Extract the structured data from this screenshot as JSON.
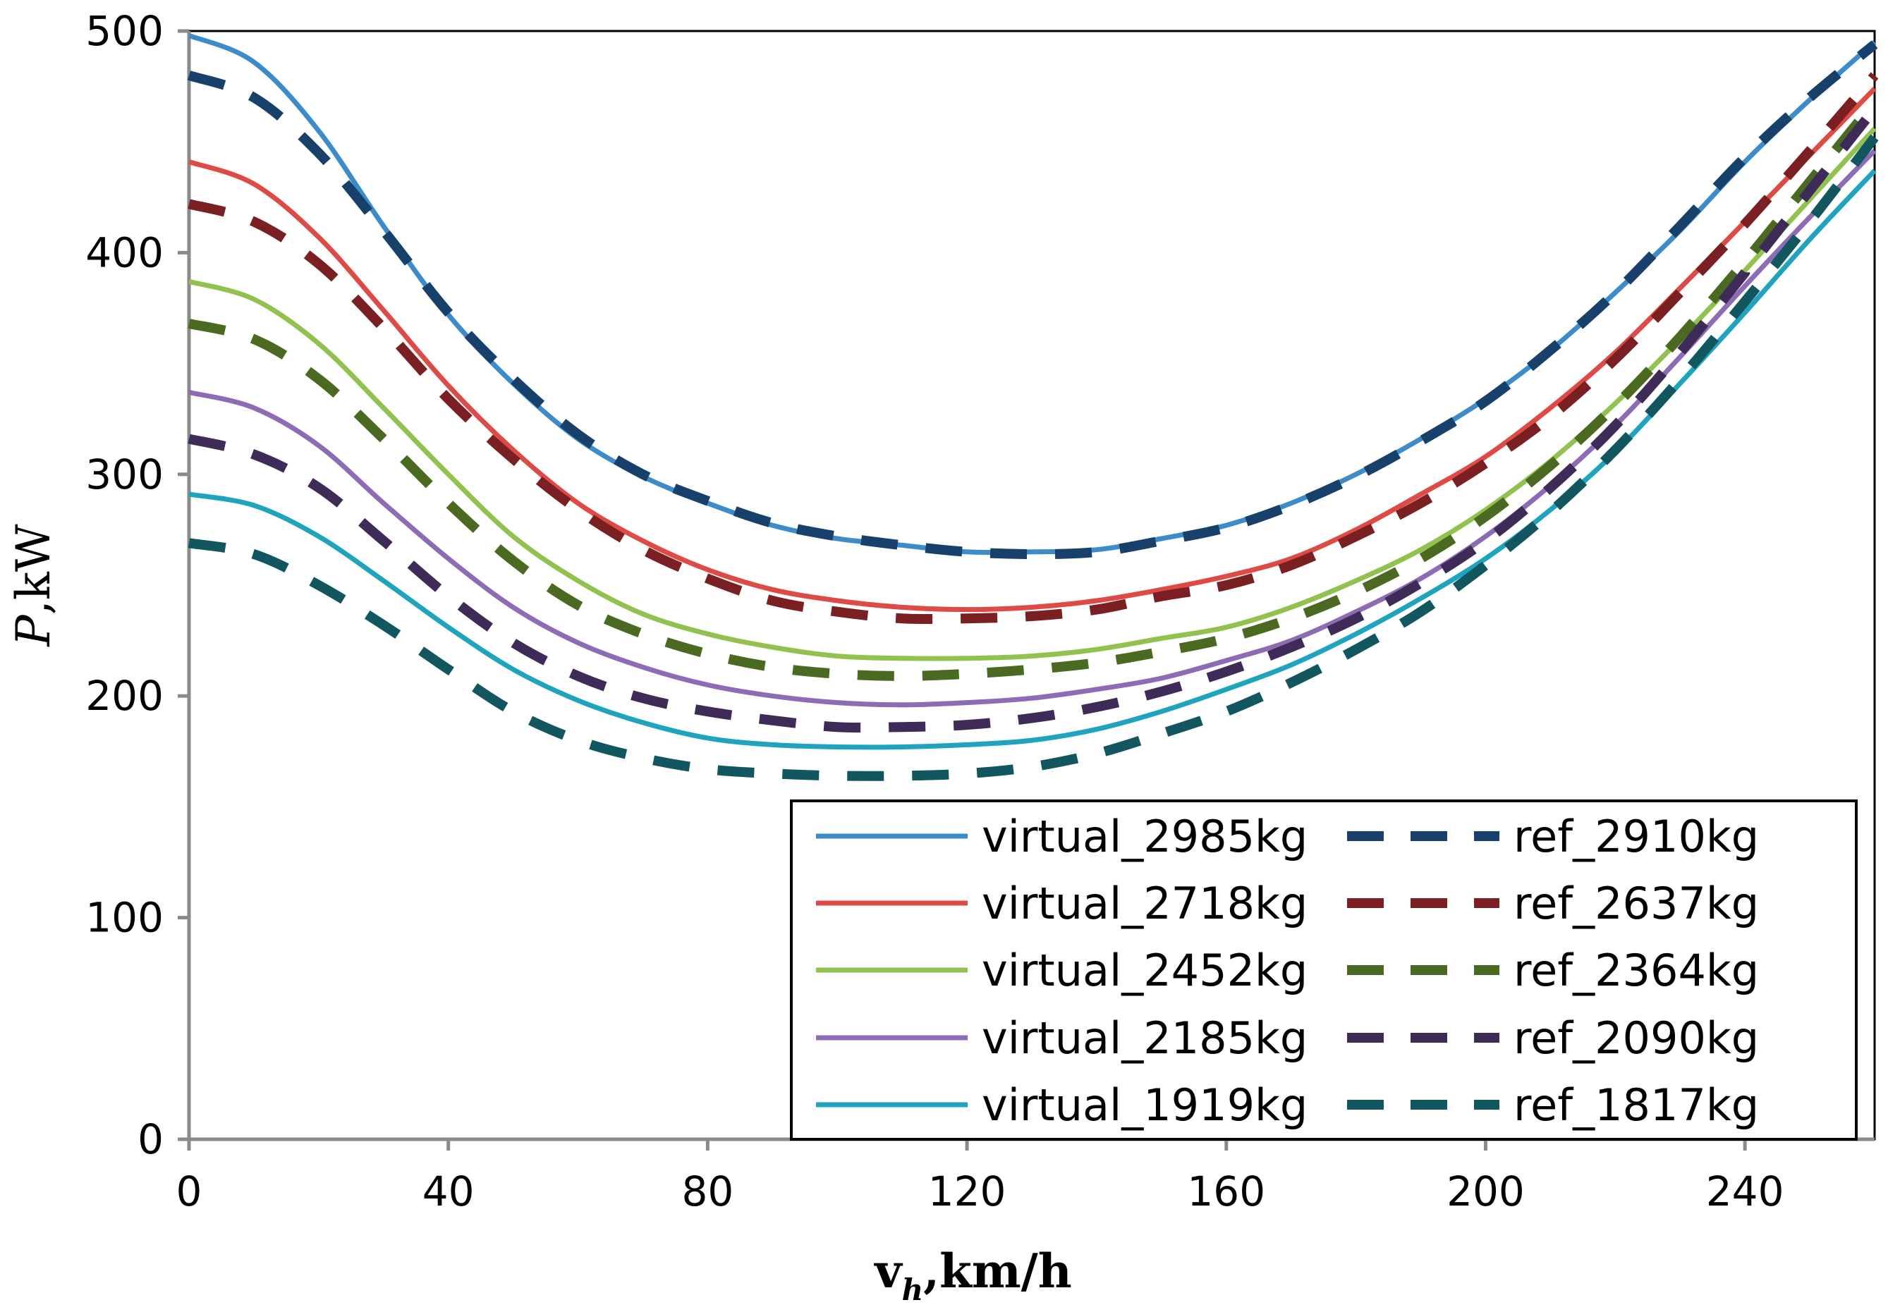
{
  "chart_data": {
    "type": "line",
    "title": "",
    "xlabel": {
      "main": "v",
      "sub": "h",
      "unit": ",km/h"
    },
    "ylabel": {
      "main": "P",
      "unit": ",kW"
    },
    "xlim": [
      0,
      260
    ],
    "ylim": [
      0,
      500
    ],
    "xticks": [
      0,
      40,
      80,
      120,
      160,
      200,
      240
    ],
    "yticks": [
      0,
      100,
      200,
      300,
      400,
      500
    ],
    "grid": false,
    "legend_position": "bottom-right",
    "x": [
      0,
      10,
      20,
      30,
      40,
      50,
      60,
      70,
      80,
      90,
      100,
      110,
      120,
      130,
      140,
      150,
      160,
      170,
      180,
      190,
      200,
      210,
      220,
      230,
      240,
      250,
      260
    ],
    "series": [
      {
        "name": "virtual_2985kg",
        "style": "solid",
        "color": "#3d8cc9",
        "values": [
          498,
          486,
          455,
          412,
          372,
          341,
          316,
          299,
          287,
          277,
          271,
          268,
          265,
          265,
          266,
          271,
          277,
          287,
          300,
          316,
          334,
          356,
          382,
          410,
          441,
          469,
          495
        ]
      },
      {
        "name": "ref_2910kg",
        "style": "dashed",
        "color": "#17406a",
        "values": [
          480,
          470,
          445,
          410,
          373,
          343,
          318,
          300,
          288,
          278,
          272,
          268,
          265,
          264,
          265,
          270,
          276,
          286,
          299,
          315,
          333,
          356,
          382,
          412,
          443,
          470,
          494
        ]
      },
      {
        "name": "virtual_2718kg",
        "style": "solid",
        "color": "#de4a45",
        "values": [
          441,
          431,
          407,
          374,
          340,
          311,
          287,
          270,
          257,
          248,
          243,
          240,
          239,
          240,
          243,
          248,
          254,
          262,
          275,
          291,
          308,
          330,
          355,
          384,
          414,
          444,
          474
        ]
      },
      {
        "name": "ref_2637kg",
        "style": "dashed",
        "color": "#7a2022",
        "values": [
          422,
          414,
          395,
          366,
          334,
          307,
          284,
          266,
          253,
          243,
          238,
          235,
          235,
          236,
          239,
          245,
          250,
          259,
          272,
          287,
          305,
          326,
          352,
          382,
          413,
          446,
          480
        ]
      },
      {
        "name": "virtual_2452kg",
        "style": "solid",
        "color": "#91c250",
        "values": [
          387,
          379,
          359,
          330,
          300,
          272,
          252,
          237,
          228,
          222,
          218,
          217,
          217,
          218,
          221,
          226,
          231,
          240,
          252,
          266,
          284,
          306,
          332,
          361,
          392,
          424,
          456
        ]
      },
      {
        "name": "ref_2364kg",
        "style": "dashed",
        "color": "#4a6a22",
        "values": [
          368,
          361,
          343,
          316,
          287,
          261,
          241,
          228,
          219,
          213,
          210,
          209,
          210,
          212,
          215,
          220,
          226,
          235,
          247,
          262,
          281,
          304,
          331,
          362,
          396,
          432,
          468
        ]
      },
      {
        "name": "virtual_2185kg",
        "style": "solid",
        "color": "#8e6bb5",
        "values": [
          337,
          330,
          313,
          287,
          262,
          240,
          224,
          213,
          205,
          200,
          197,
          196,
          197,
          199,
          203,
          208,
          216,
          225,
          238,
          253,
          272,
          295,
          322,
          353,
          385,
          416,
          446
        ]
      },
      {
        "name": "ref_2090kg",
        "style": "dashed",
        "color": "#3e2b58",
        "values": [
          316,
          309,
          294,
          270,
          245,
          224,
          209,
          199,
          193,
          189,
          186,
          186,
          187,
          190,
          195,
          202,
          211,
          222,
          235,
          251,
          270,
          294,
          322,
          355,
          391,
          428,
          465
        ]
      },
      {
        "name": "virtual_1919kg",
        "style": "solid",
        "color": "#1fa4be",
        "values": [
          291,
          286,
          272,
          252,
          231,
          212,
          198,
          188,
          181,
          178,
          177,
          177,
          178,
          180,
          185,
          193,
          203,
          214,
          228,
          244,
          262,
          284,
          310,
          341,
          373,
          406,
          437
        ]
      },
      {
        "name": "ref_1817kg",
        "style": "dashed",
        "color": "#12575f",
        "values": [
          269,
          264,
          250,
          232,
          212,
          193,
          180,
          172,
          167,
          165,
          164,
          164,
          165,
          168,
          174,
          183,
          193,
          206,
          221,
          238,
          259,
          283,
          311,
          343,
          378,
          414,
          452
        ]
      }
    ]
  }
}
